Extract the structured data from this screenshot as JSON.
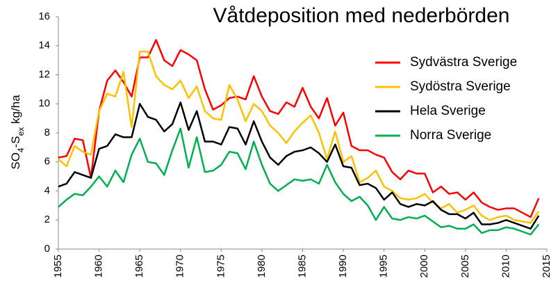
{
  "chart_data": {
    "type": "line",
    "title": "Våtdeposition med nederbörden",
    "ylabel": [
      "SO",
      "4",
      "-S",
      "ex",
      " kg/ha"
    ],
    "x": [
      1955,
      1956,
      1957,
      1958,
      1959,
      1960,
      1961,
      1962,
      1963,
      1964,
      1965,
      1966,
      1967,
      1968,
      1969,
      1970,
      1971,
      1972,
      1973,
      1974,
      1975,
      1976,
      1977,
      1978,
      1979,
      1980,
      1981,
      1982,
      1983,
      1984,
      1985,
      1986,
      1987,
      1988,
      1989,
      1990,
      1991,
      1992,
      1993,
      1994,
      1995,
      1996,
      1997,
      1998,
      1999,
      2000,
      2001,
      2002,
      2003,
      2004,
      2005,
      2006,
      2007,
      2008,
      2009,
      2010,
      2011,
      2012,
      2013,
      2014
    ],
    "xlim": [
      1955,
      2015
    ],
    "xticks": [
      1955,
      1960,
      1965,
      1970,
      1975,
      1980,
      1985,
      1990,
      1995,
      2000,
      2005,
      2010,
      2015
    ],
    "ylim": [
      0,
      16
    ],
    "yticks": [
      0,
      2,
      4,
      6,
      8,
      10,
      12,
      14,
      16
    ],
    "legend": "upper right",
    "series": [
      {
        "name": "Sydvästra Sverige",
        "color": "#ff0000",
        "values": [
          6.3,
          6.4,
          7.6,
          7.5,
          4.9,
          9.5,
          11.6,
          12.3,
          11.5,
          10.5,
          13.2,
          13.2,
          14.4,
          13.0,
          12.6,
          13.7,
          13.4,
          13.0,
          11.0,
          9.6,
          9.9,
          10.4,
          10.5,
          10.3,
          11.9,
          10.5,
          9.5,
          9.3,
          10.1,
          9.8,
          11.1,
          9.8,
          9.0,
          10.4,
          8.5,
          9.4,
          7.1,
          6.8,
          6.8,
          6.5,
          6.3,
          5.3,
          4.8,
          5.4,
          5.2,
          5.2,
          3.9,
          4.3,
          3.8,
          3.9,
          3.4,
          3.9,
          3.2,
          2.9,
          2.7,
          2.8,
          2.8,
          2.5,
          2.2,
          3.5
        ]
      },
      {
        "name": "Sydöstra Sverige",
        "color": "#ffc000",
        "values": [
          6.2,
          5.7,
          7.1,
          6.7,
          6.5,
          9.5,
          10.7,
          10.5,
          12.2,
          8.4,
          13.6,
          13.6,
          11.9,
          11.3,
          11.0,
          11.6,
          10.4,
          11.2,
          9.5,
          9.0,
          8.9,
          11.3,
          10.3,
          8.8,
          10.0,
          9.5,
          8.5,
          8.0,
          7.3,
          8.1,
          8.7,
          9.2,
          8.0,
          6.2,
          8.1,
          6.0,
          6.4,
          4.6,
          4.9,
          5.4,
          4.3,
          4.0,
          3.5,
          3.4,
          3.5,
          3.8,
          3.2,
          2.8,
          3.1,
          2.5,
          2.7,
          3.0,
          2.3,
          2.0,
          2.2,
          2.3,
          2.0,
          1.9,
          1.8,
          2.6
        ]
      },
      {
        "name": "Hela Sverige",
        "color": "#000000",
        "values": [
          4.3,
          4.5,
          5.3,
          5.1,
          4.9,
          6.9,
          7.1,
          7.9,
          7.7,
          7.7,
          10.0,
          9.1,
          8.9,
          8.1,
          8.6,
          10.1,
          8.2,
          9.5,
          7.4,
          7.4,
          7.2,
          8.4,
          8.3,
          7.2,
          8.8,
          7.4,
          6.3,
          5.8,
          6.4,
          6.7,
          6.8,
          7.0,
          6.6,
          6.0,
          7.2,
          5.7,
          5.6,
          4.4,
          4.5,
          4.2,
          3.4,
          3.9,
          3.1,
          2.9,
          3.1,
          3.0,
          3.3,
          2.7,
          2.4,
          2.4,
          2.1,
          2.5,
          1.7,
          1.7,
          1.8,
          2.0,
          1.8,
          1.6,
          1.4,
          2.3
        ]
      },
      {
        "name": "Norra Sverige",
        "color": "#00b050",
        "values": [
          2.9,
          3.4,
          3.8,
          3.7,
          4.3,
          5.0,
          4.3,
          5.4,
          4.6,
          6.5,
          7.6,
          6.0,
          5.9,
          5.1,
          6.8,
          8.3,
          5.6,
          7.7,
          5.3,
          5.4,
          5.8,
          6.7,
          6.6,
          5.5,
          7.4,
          5.8,
          4.5,
          4.0,
          4.4,
          4.8,
          4.7,
          4.8,
          4.5,
          5.8,
          4.6,
          3.8,
          3.3,
          3.6,
          3.0,
          2.0,
          2.9,
          2.1,
          2.0,
          2.2,
          2.1,
          2.3,
          1.9,
          1.5,
          1.6,
          1.4,
          1.4,
          1.7,
          1.1,
          1.3,
          1.3,
          1.5,
          1.4,
          1.2,
          1.0,
          1.7
        ]
      }
    ]
  }
}
